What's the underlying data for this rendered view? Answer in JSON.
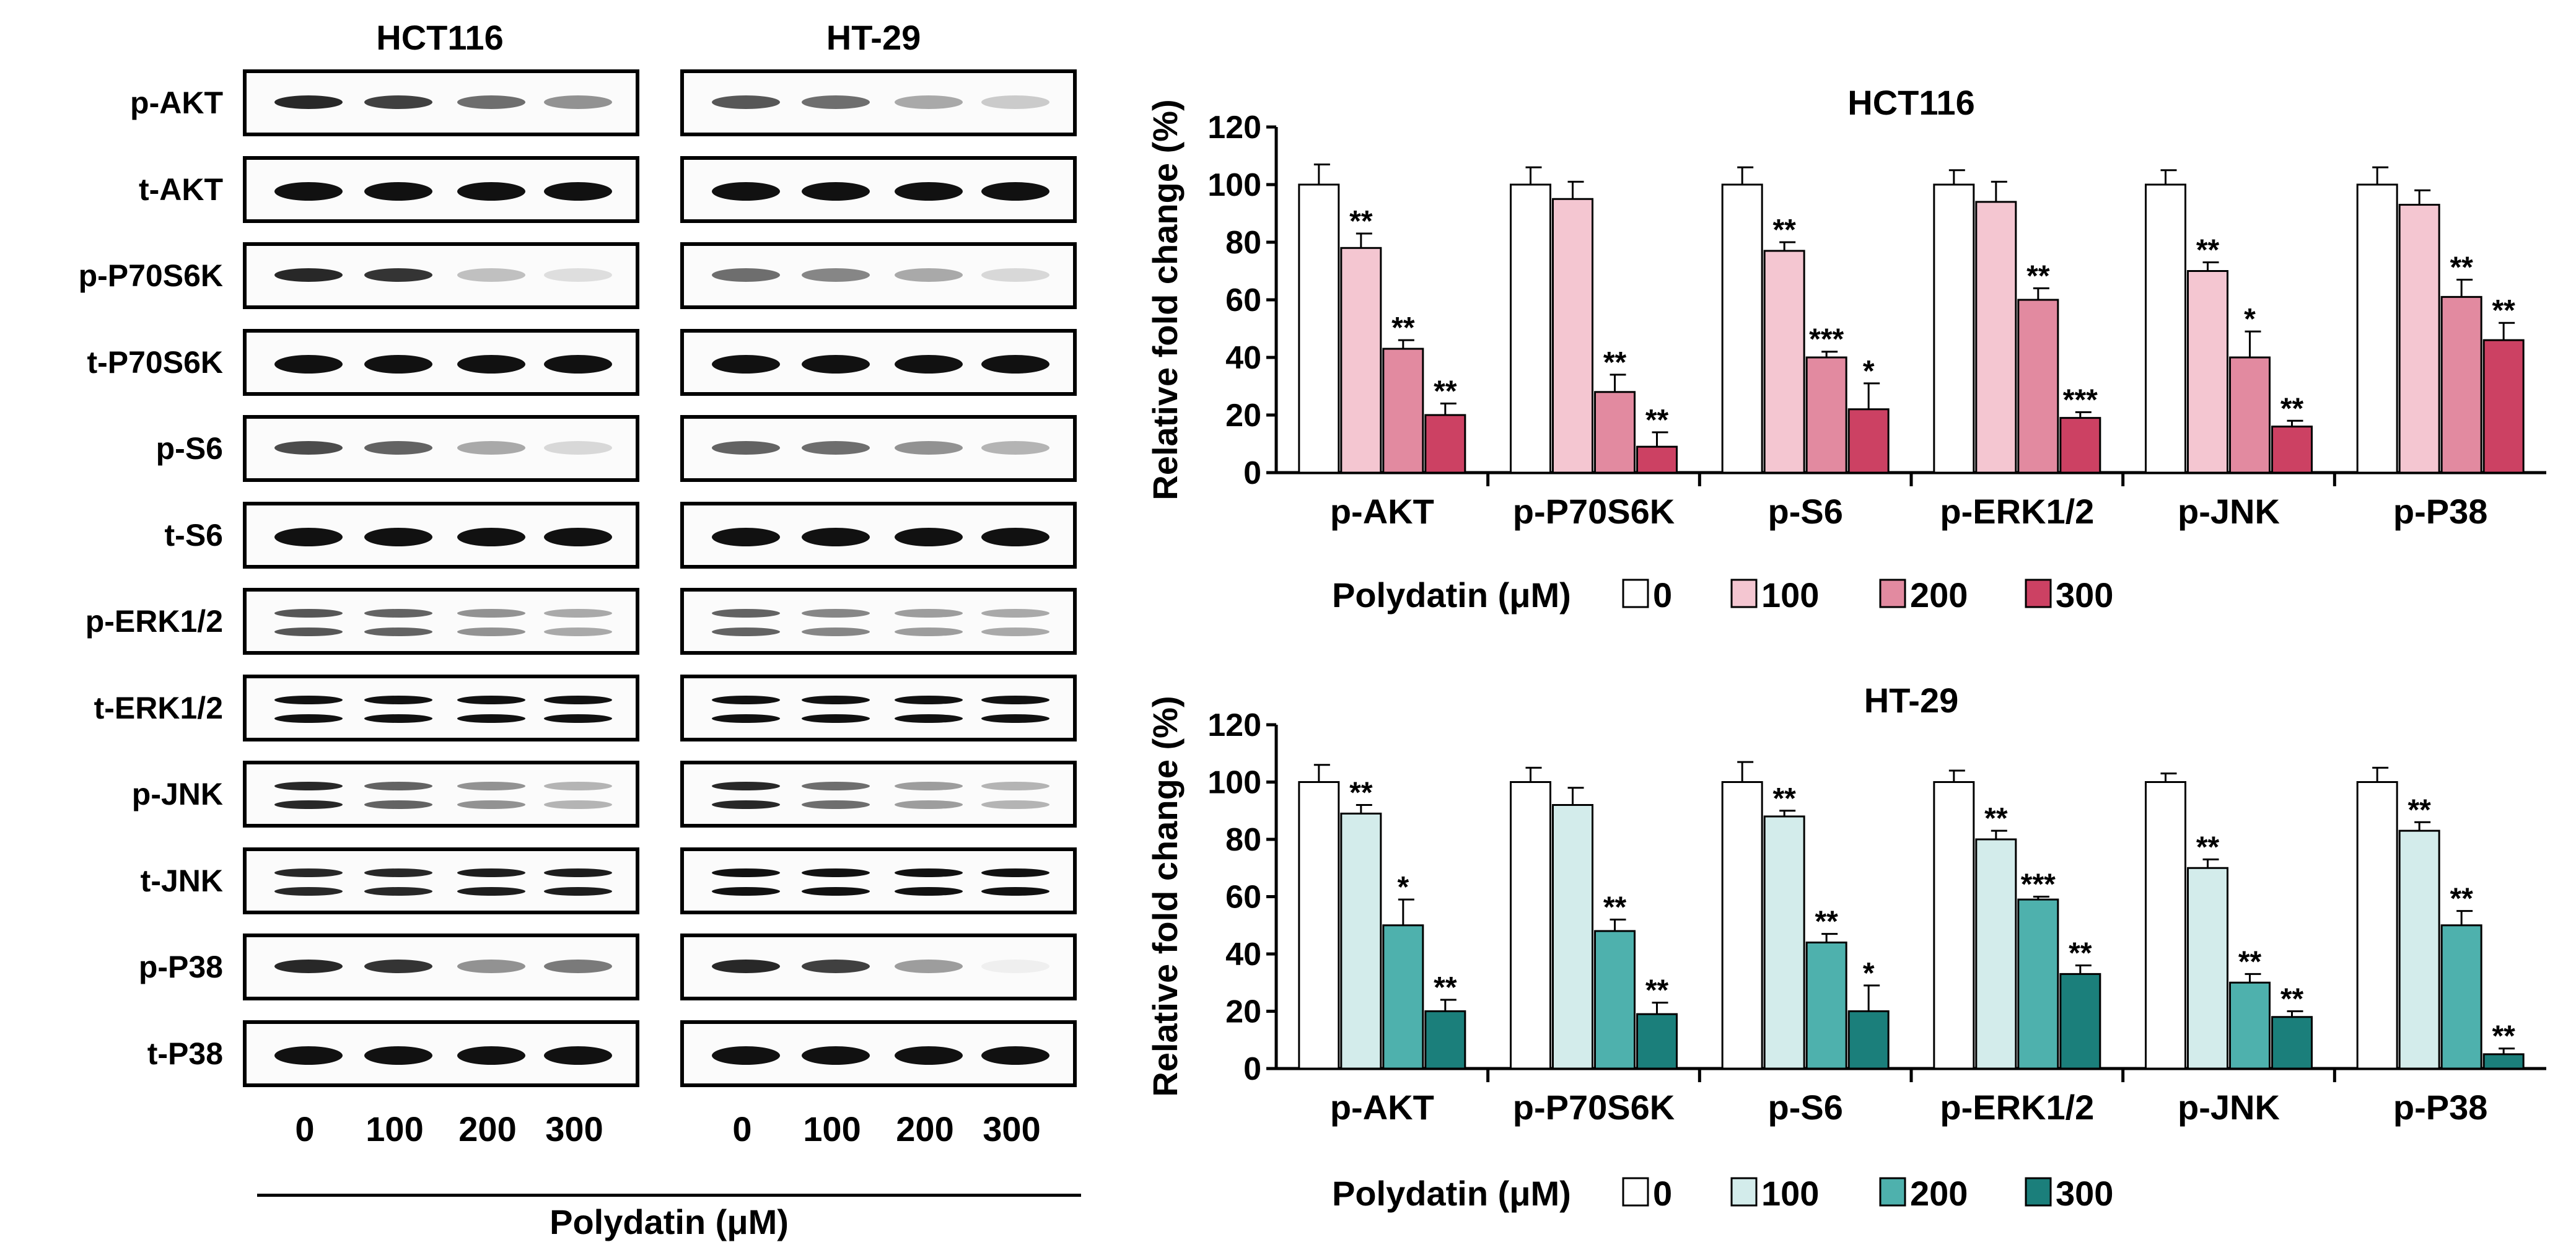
{
  "western_blot": {
    "cell_lines": [
      "HCT116",
      "HT-29"
    ],
    "rows": [
      "p-AKT",
      "t-AKT",
      "p-P70S6K",
      "t-P70S6K",
      "p-S6",
      "t-S6",
      "p-ERK1/2",
      "t-ERK1/2",
      "p-JNK",
      "t-JNK",
      "p-P38",
      "t-P38"
    ],
    "lanes": [
      "0",
      "100",
      "200",
      "300"
    ],
    "xlabel": "Polydatin (μM)"
  },
  "chart_data": [
    {
      "type": "bar",
      "title": "HCT116",
      "ylabel": "Relative fold change (%)",
      "ylim": [
        0,
        120
      ],
      "yticks": [
        0,
        20,
        40,
        60,
        80,
        100,
        120
      ],
      "categories": [
        "p-AKT",
        "p-P70S6K",
        "p-S6",
        "p-ERK1/2",
        "p-JNK",
        "p-P38"
      ],
      "legend_title": "Polydatin (μM)",
      "series": [
        {
          "name": "0",
          "color": "#ffffff",
          "values": [
            100,
            100,
            100,
            100,
            100,
            100
          ],
          "errors": [
            7,
            6,
            6,
            5,
            5,
            6
          ],
          "sig": [
            "",
            "",
            "",
            "",
            "",
            ""
          ]
        },
        {
          "name": "100",
          "color": "#f4c6d1",
          "values": [
            78,
            95,
            77,
            94,
            70,
            93
          ],
          "errors": [
            5,
            6,
            3,
            7,
            3,
            5
          ],
          "sig": [
            "**",
            "",
            "**",
            "",
            "**",
            ""
          ]
        },
        {
          "name": "200",
          "color": "#e28aa0",
          "values": [
            43,
            28,
            40,
            60,
            40,
            61
          ],
          "errors": [
            3,
            6,
            2,
            4,
            9,
            6
          ],
          "sig": [
            "**",
            "**",
            "***",
            "**",
            "*",
            "**"
          ]
        },
        {
          "name": "300",
          "color": "#cc4163",
          "values": [
            20,
            9,
            22,
            19,
            16,
            46
          ],
          "errors": [
            4,
            5,
            9,
            2,
            2,
            6
          ],
          "sig": [
            "**",
            "**",
            "*",
            "***",
            "**",
            "**"
          ]
        }
      ]
    },
    {
      "type": "bar",
      "title": "HT-29",
      "ylabel": "Relative fold change (%)",
      "ylim": [
        0,
        120
      ],
      "yticks": [
        0,
        20,
        40,
        60,
        80,
        100,
        120
      ],
      "categories": [
        "p-AKT",
        "p-P70S6K",
        "p-S6",
        "p-ERK1/2",
        "p-JNK",
        "p-P38"
      ],
      "legend_title": "Polydatin (μM)",
      "series": [
        {
          "name": "0",
          "color": "#ffffff",
          "values": [
            100,
            100,
            100,
            100,
            100,
            100
          ],
          "errors": [
            6,
            5,
            7,
            4,
            3,
            5
          ],
          "sig": [
            "",
            "",
            "",
            "",
            "",
            ""
          ]
        },
        {
          "name": "100",
          "color": "#d3eceb",
          "values": [
            89,
            92,
            88,
            80,
            70,
            83
          ],
          "errors": [
            3,
            6,
            2,
            3,
            3,
            3
          ],
          "sig": [
            "**",
            "",
            "**",
            "**",
            "**",
            "**"
          ]
        },
        {
          "name": "200",
          "color": "#4eb1ad",
          "values": [
            50,
            48,
            44,
            59,
            30,
            50
          ],
          "errors": [
            9,
            4,
            3,
            1,
            3,
            5
          ],
          "sig": [
            "*",
            "**",
            "**",
            "***",
            "**",
            "**"
          ]
        },
        {
          "name": "300",
          "color": "#1b7f7b",
          "values": [
            20,
            19,
            20,
            33,
            18,
            5
          ],
          "errors": [
            4,
            4,
            9,
            3,
            2,
            2
          ],
          "sig": [
            "**",
            "**",
            "*",
            "**",
            "**",
            "**"
          ]
        }
      ]
    }
  ]
}
